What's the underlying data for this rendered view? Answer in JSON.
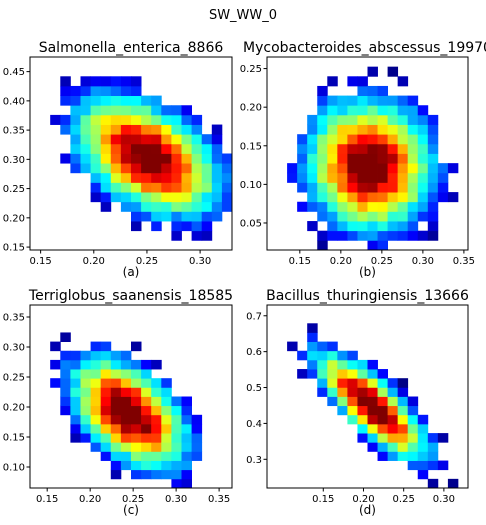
{
  "figure": {
    "title": "SW_WW_0"
  },
  "chart_data": [
    {
      "type": "heatmap",
      "title": "Salmonella_enterica_8866",
      "caption": "(a)",
      "xlim": [
        0.14,
        0.33
      ],
      "ylim": [
        0.145,
        0.475
      ],
      "xticks": [
        "0.15",
        "0.20",
        "0.25",
        "0.30"
      ],
      "yticks": [
        "0.15",
        "0.20",
        "0.25",
        "0.30",
        "0.35",
        "0.40",
        "0.45"
      ],
      "cx": 0.25,
      "cy": 0.305,
      "sx": 0.04,
      "sy": 0.06,
      "rho": -0.45
    },
    {
      "type": "heatmap",
      "title": "Mycobacteroides_abscessus_19970",
      "caption": "(b)",
      "xlim": [
        0.11,
        0.355
      ],
      "ylim": [
        0.015,
        0.265
      ],
      "xticks": [
        "0.15",
        "0.20",
        "0.25",
        "0.30",
        "0.35"
      ],
      "yticks": [
        "0.05",
        "0.10",
        "0.15",
        "0.20",
        "0.25"
      ],
      "cx": 0.235,
      "cy": 0.125,
      "sx": 0.045,
      "sy": 0.05,
      "rho": -0.05
    },
    {
      "type": "heatmap",
      "title": "Terriglobus_saanensis_18585",
      "caption": "(c)",
      "xlim": [
        0.13,
        0.365
      ],
      "ylim": [
        0.065,
        0.37
      ],
      "xticks": [
        "0.15",
        "0.20",
        "0.25",
        "0.30",
        "0.35"
      ],
      "yticks": [
        "0.10",
        "0.15",
        "0.20",
        "0.25",
        "0.30",
        "0.35"
      ],
      "cx": 0.245,
      "cy": 0.19,
      "sx": 0.04,
      "sy": 0.055,
      "rho": -0.5
    },
    {
      "type": "heatmap",
      "title": "Bacillus_thuringiensis_13666",
      "caption": "(d)",
      "xlim": [
        0.08,
        0.33
      ],
      "ylim": [
        0.22,
        0.73
      ],
      "xticks": [
        "0.15",
        "0.20",
        "0.25",
        "0.30"
      ],
      "yticks": [
        "0.3",
        "0.4",
        "0.5",
        "0.6",
        "0.7"
      ],
      "cx": 0.21,
      "cy": 0.45,
      "sx": 0.042,
      "sy": 0.09,
      "rho": -0.8
    }
  ]
}
